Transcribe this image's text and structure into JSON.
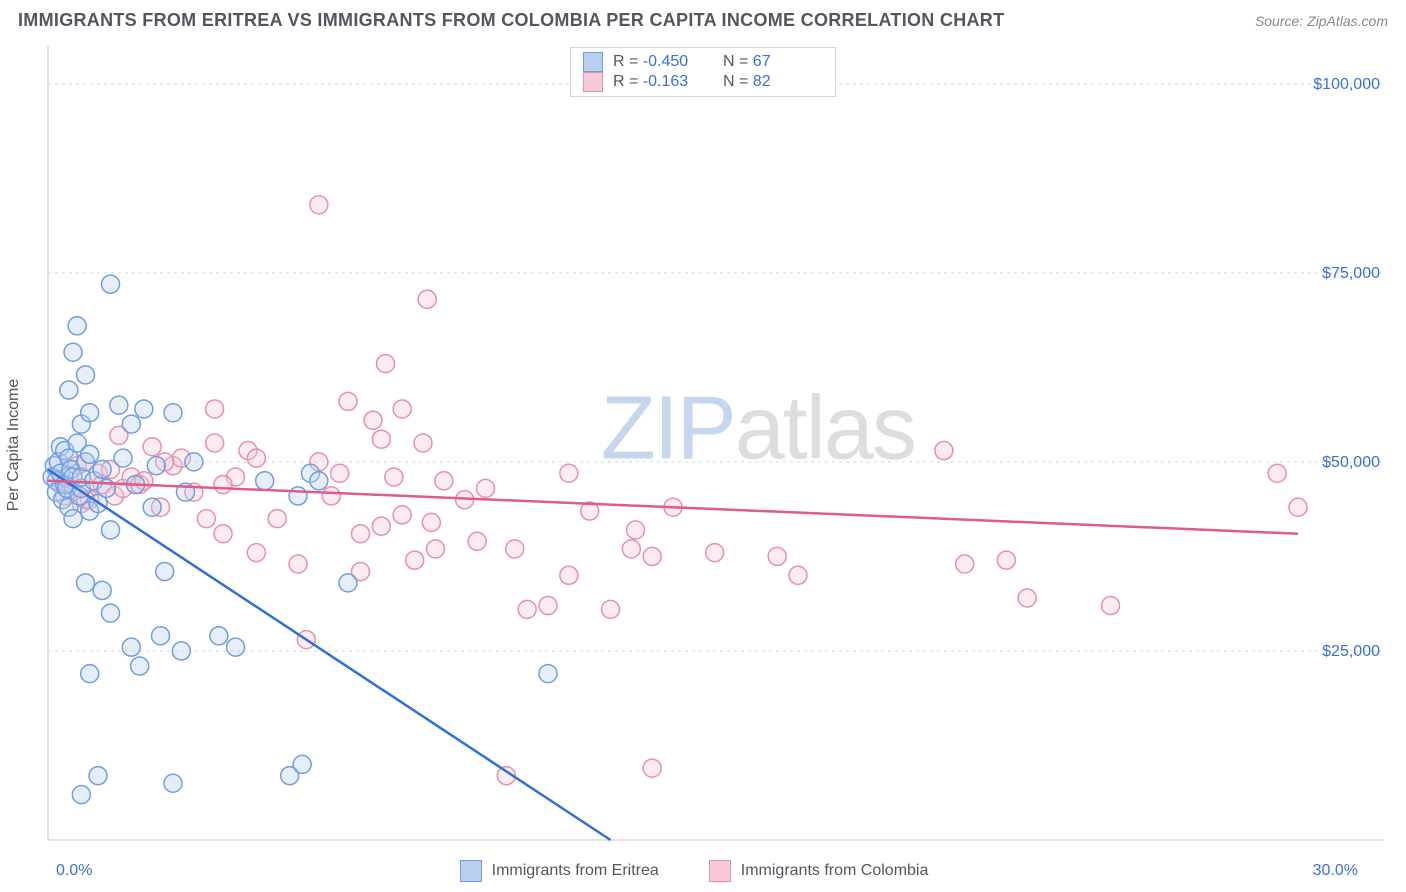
{
  "header": {
    "title": "IMMIGRANTS FROM ERITREA VS IMMIGRANTS FROM COLOMBIA PER CAPITA INCOME CORRELATION CHART",
    "source": "Source: ZipAtlas.com"
  },
  "watermark": {
    "part1": "ZIP",
    "part2": "atlas"
  },
  "chart": {
    "type": "scatter",
    "background_color": "#ffffff",
    "grid_color": "#d8d8da",
    "axis_color": "#d8d8da",
    "ylabel": "Per Capita Income",
    "xlim": [
      0,
      30
    ],
    "ylim": [
      0,
      105000
    ],
    "yticks": [
      25000,
      50000,
      75000,
      100000
    ],
    "ytick_labels": [
      "$25,000",
      "$50,000",
      "$75,000",
      "$100,000"
    ],
    "xtick_labels": {
      "left": "0.0%",
      "right": "30.0%"
    },
    "marker_radius": 9,
    "label_fontsize": 16,
    "tick_color": "#3a6fd8",
    "series": [
      {
        "key": "eritrea",
        "label": "Immigrants from Eritrea",
        "fill": "#b8d0ef",
        "stroke": "#6f9fe0",
        "line_color": "#2f6fd8",
        "R": "-0.450",
        "N": "67",
        "trend": {
          "x1": 0,
          "y1": 49000,
          "x2": 13.5,
          "y2": 0
        },
        "points": [
          [
            0.1,
            48000
          ],
          [
            0.15,
            49500
          ],
          [
            0.2,
            47500
          ],
          [
            0.2,
            46000
          ],
          [
            0.25,
            50000
          ],
          [
            0.3,
            52000
          ],
          [
            0.3,
            48500
          ],
          [
            0.35,
            45000
          ],
          [
            0.4,
            51500
          ],
          [
            0.4,
            47000
          ],
          [
            0.45,
            46500
          ],
          [
            0.5,
            44000
          ],
          [
            0.5,
            50500
          ],
          [
            0.55,
            49000
          ],
          [
            0.6,
            42500
          ],
          [
            0.6,
            48000
          ],
          [
            0.7,
            52500
          ],
          [
            0.75,
            45500
          ],
          [
            0.8,
            46500
          ],
          [
            0.8,
            48000
          ],
          [
            0.9,
            50000
          ],
          [
            1.0,
            43500
          ],
          [
            1.0,
            51000
          ],
          [
            1.1,
            47500
          ],
          [
            1.2,
            44500
          ],
          [
            1.3,
            49000
          ],
          [
            1.4,
            46500
          ],
          [
            1.5,
            73500
          ],
          [
            1.5,
            41000
          ],
          [
            0.6,
            64500
          ],
          [
            0.7,
            68000
          ],
          [
            0.5,
            59500
          ],
          [
            0.9,
            61500
          ],
          [
            1.7,
            57500
          ],
          [
            1.8,
            50500
          ],
          [
            2.0,
            55000
          ],
          [
            2.1,
            47000
          ],
          [
            2.3,
            57000
          ],
          [
            2.5,
            44000
          ],
          [
            2.6,
            49500
          ],
          [
            0.8,
            55000
          ],
          [
            1.0,
            56500
          ],
          [
            2.8,
            35500
          ],
          [
            3.0,
            56500
          ],
          [
            3.3,
            46000
          ],
          [
            3.5,
            50000
          ],
          [
            1.3,
            33000
          ],
          [
            0.9,
            34000
          ],
          [
            1.5,
            30000
          ],
          [
            1.0,
            22000
          ],
          [
            2.0,
            25500
          ],
          [
            2.7,
            27000
          ],
          [
            2.2,
            23000
          ],
          [
            3.2,
            25000
          ],
          [
            4.1,
            27000
          ],
          [
            4.5,
            25500
          ],
          [
            5.2,
            47500
          ],
          [
            6.0,
            45500
          ],
          [
            6.3,
            48500
          ],
          [
            6.5,
            47500
          ],
          [
            7.2,
            34000
          ],
          [
            1.2,
            8500
          ],
          [
            0.8,
            6000
          ],
          [
            5.8,
            8500
          ],
          [
            6.1,
            10000
          ],
          [
            12.0,
            22000
          ],
          [
            3.0,
            7500
          ]
        ]
      },
      {
        "key": "colombia",
        "label": "Immigrants from Colombia",
        "fill": "#f6c9d6",
        "stroke": "#e98fac",
        "line_color": "#e05a8a",
        "R": "-0.163",
        "N": "82",
        "trend": {
          "x1": 0,
          "y1": 47500,
          "x2": 30,
          "y2": 40500
        },
        "points": [
          [
            0.3,
            47000
          ],
          [
            0.4,
            45500
          ],
          [
            0.5,
            48000
          ],
          [
            0.6,
            46000
          ],
          [
            0.7,
            49500
          ],
          [
            0.8,
            44500
          ],
          [
            0.9,
            50000
          ],
          [
            1.0,
            45000
          ],
          [
            1.2,
            48500
          ],
          [
            1.3,
            47000
          ],
          [
            1.5,
            49000
          ],
          [
            1.6,
            45500
          ],
          [
            1.8,
            46500
          ],
          [
            2.0,
            48000
          ],
          [
            2.2,
            47000
          ],
          [
            2.5,
            52000
          ],
          [
            2.7,
            44000
          ],
          [
            3.0,
            49500
          ],
          [
            3.2,
            50500
          ],
          [
            4.0,
            52500
          ],
          [
            4.0,
            57000
          ],
          [
            4.5,
            48000
          ],
          [
            4.8,
            51500
          ],
          [
            5.0,
            50500
          ],
          [
            3.5,
            46000
          ],
          [
            2.8,
            50000
          ],
          [
            6.5,
            84000
          ],
          [
            8.1,
            63000
          ],
          [
            9.1,
            71500
          ],
          [
            7.2,
            58000
          ],
          [
            7.8,
            55500
          ],
          [
            8.5,
            57000
          ],
          [
            8.0,
            53000
          ],
          [
            6.5,
            50000
          ],
          [
            7.0,
            48500
          ],
          [
            6.8,
            45500
          ],
          [
            8.3,
            48000
          ],
          [
            9.0,
            52500
          ],
          [
            9.5,
            47500
          ],
          [
            7.5,
            40500
          ],
          [
            8.0,
            41500
          ],
          [
            8.5,
            43000
          ],
          [
            9.2,
            42000
          ],
          [
            10.0,
            45000
          ],
          [
            6.2,
            26500
          ],
          [
            7.5,
            35500
          ],
          [
            8.8,
            37000
          ],
          [
            9.3,
            38500
          ],
          [
            10.3,
            39500
          ],
          [
            10.5,
            46500
          ],
          [
            11.2,
            38500
          ],
          [
            11.5,
            30500
          ],
          [
            12.0,
            31000
          ],
          [
            12.5,
            35000
          ],
          [
            12.5,
            48500
          ],
          [
            13.0,
            43500
          ],
          [
            13.5,
            30500
          ],
          [
            14.0,
            38500
          ],
          [
            14.1,
            41000
          ],
          [
            14.5,
            37500
          ],
          [
            15.0,
            44000
          ],
          [
            16.0,
            38000
          ],
          [
            17.5,
            37500
          ],
          [
            18.0,
            35000
          ],
          [
            21.5,
            51500
          ],
          [
            22.0,
            36500
          ],
          [
            23.0,
            37000
          ],
          [
            23.5,
            32000
          ],
          [
            25.5,
            31000
          ],
          [
            29.5,
            48500
          ],
          [
            30.0,
            44000
          ],
          [
            3.8,
            42500
          ],
          [
            4.2,
            40500
          ],
          [
            5.0,
            38000
          ],
          [
            5.5,
            42500
          ],
          [
            6.0,
            36500
          ],
          [
            1.7,
            53500
          ],
          [
            2.3,
            47500
          ],
          [
            0.9,
            45000
          ],
          [
            4.2,
            47000
          ],
          [
            11.0,
            8500
          ],
          [
            14.5,
            9500
          ]
        ]
      }
    ]
  },
  "legend_top": {
    "rows": [
      {
        "swatch_fill": "#b8d0ef",
        "swatch_stroke": "#6f9fe0",
        "R_label": "R =",
        "R": "-0.450",
        "N_label": "N =",
        "N": "67"
      },
      {
        "swatch_fill": "#f6c9d6",
        "swatch_stroke": "#e98fac",
        "R_label": "R =",
        "R": "-0.163",
        "N_label": "N =",
        "N": "82"
      }
    ]
  }
}
